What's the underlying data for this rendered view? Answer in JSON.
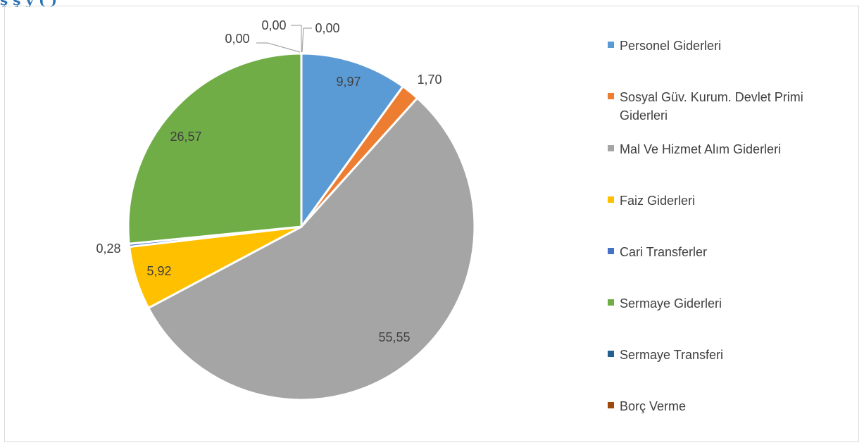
{
  "header": {
    "title_fragment": "ş ş y ( )"
  },
  "chart_data": {
    "type": "pie",
    "title": "",
    "legend_position": "right",
    "slices": [
      {
        "label": "Personel Giderleri",
        "value": 9.97,
        "value_label": "9,97",
        "color": "#5b9bd5"
      },
      {
        "label": "Sosyal Güv. Kurum. Devlet Primi Giderleri",
        "value": 1.7,
        "value_label": "1,70",
        "color": "#ed7d31"
      },
      {
        "label": "Mal Ve Hizmet Alım Giderleri",
        "value": 55.55,
        "value_label": "55,55",
        "color": "#a5a5a5"
      },
      {
        "label": "Faiz Giderleri",
        "value": 5.92,
        "value_label": "5,92",
        "color": "#ffc000"
      },
      {
        "label": "Cari Transferler",
        "value": 0.28,
        "value_label": "0,28",
        "color": "#4472c4"
      },
      {
        "label": "Sermaye Giderleri",
        "value": 26.57,
        "value_label": "26,57",
        "color": "#70ad47"
      },
      {
        "label": "Sermaye Transferi",
        "value": 0.0,
        "value_label": "0,00",
        "color": "#255e91"
      },
      {
        "label": "Borç Verme",
        "value": 0.0,
        "value_label": "0,00",
        "color": "#9e480e"
      },
      {
        "label": "",
        "value": 0.0,
        "value_label": "0,00",
        "color": "#636363"
      }
    ]
  }
}
